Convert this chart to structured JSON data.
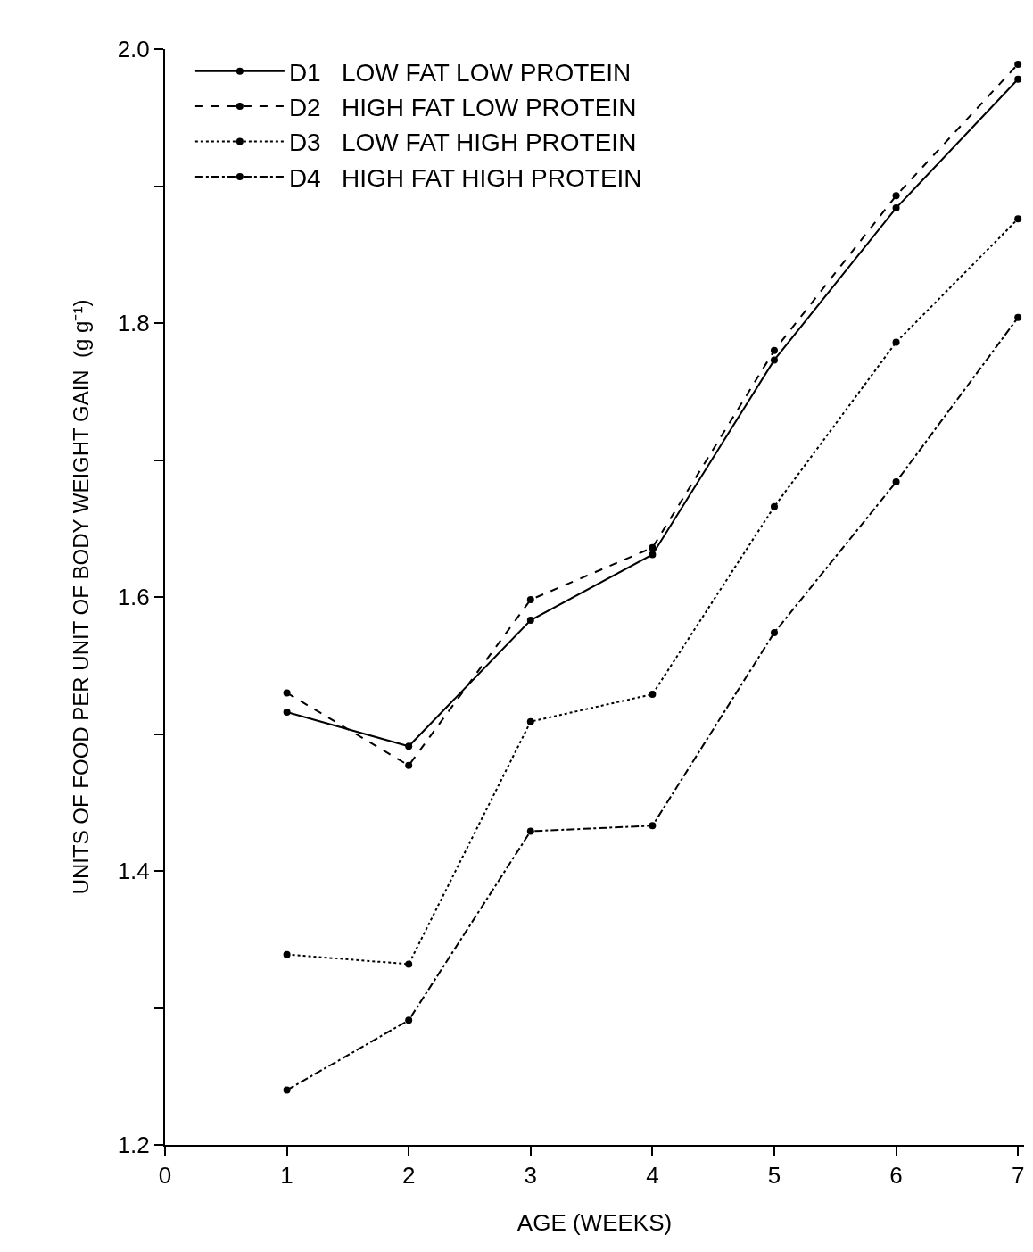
{
  "chart_data": {
    "type": "line",
    "xlabel": "AGE (WEEKS)",
    "ylabel": "UNITS OF FOOD PER UNIT OF BODY WEIGHT GAIN  (g g⁻¹)",
    "x": [
      1,
      2,
      3,
      4,
      5,
      6,
      7
    ],
    "series": [
      {
        "name": "D1   LOW FAT LOW PROTEIN",
        "color": "#000000",
        "line_style": "solid",
        "values": [
          1.516,
          1.491,
          1.583,
          1.631,
          1.773,
          1.884,
          1.978
        ]
      },
      {
        "name": "D2   HIGH FAT LOW PROTEIN",
        "color": "#000000",
        "line_style": "dashed",
        "values": [
          1.53,
          1.477,
          1.598,
          1.636,
          1.78,
          1.893,
          1.989
        ]
      },
      {
        "name": "D3   LOW FAT HIGH PROTEIN",
        "color": "#000000",
        "line_style": "dotted",
        "values": [
          1.339,
          1.332,
          1.509,
          1.529,
          1.666,
          1.786,
          1.876
        ]
      },
      {
        "name": "D4   HIGH FAT HIGH PROTEIN",
        "color": "#000000",
        "line_style": "dashdot",
        "values": [
          1.24,
          1.291,
          1.429,
          1.433,
          1.574,
          1.684,
          1.804
        ]
      }
    ],
    "xlim": [
      0,
      7.05
    ],
    "xticks": [
      0,
      1,
      2,
      3,
      4,
      5,
      6,
      7
    ],
    "ylim": [
      1.2,
      2.0
    ],
    "yticks": [
      1.2,
      {
        "value": 1.3,
        "label": null
      },
      1.4,
      {
        "value": 1.5,
        "label": null
      },
      1.6,
      {
        "value": 1.7,
        "label": null
      },
      1.8,
      {
        "value": 1.9,
        "label": null
      },
      {
        "value": 2.0,
        "label": "2.0"
      }
    ],
    "marker": "circle",
    "legend": "top left"
  }
}
